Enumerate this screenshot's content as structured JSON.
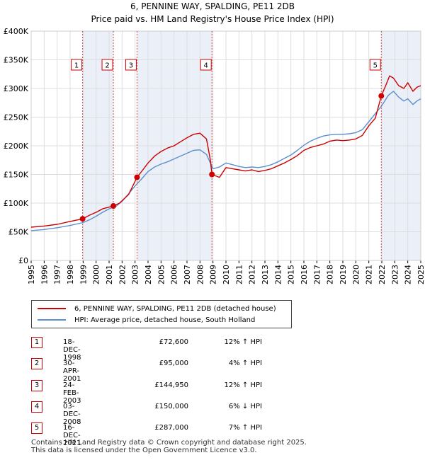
{
  "chart_data": {
    "type": "line",
    "title": "6, PENNINE WAY, SPALDING, PE11 2DB",
    "subtitle": "Price paid vs. HM Land Registry's House Price Index (HPI)",
    "x_ticks": [
      "1995",
      "1996",
      "1997",
      "1998",
      "1999",
      "2000",
      "2001",
      "2002",
      "2003",
      "2004",
      "2005",
      "2006",
      "2007",
      "2008",
      "2009",
      "2010",
      "2011",
      "2012",
      "2013",
      "2014",
      "2015",
      "2016",
      "2017",
      "2018",
      "2019",
      "2020",
      "2021",
      "2022",
      "2023",
      "2024",
      "2025"
    ],
    "y_ticks": [
      "£0",
      "£50K",
      "£100K",
      "£150K",
      "£200K",
      "£250K",
      "£300K",
      "£350K",
      "£400K"
    ],
    "xlim": [
      1995,
      2025
    ],
    "ylim": [
      0,
      400000
    ],
    "series": [
      {
        "name": "6, PENNINE WAY, SPALDING, PE11 2DB (detached house)",
        "color": "#cc0000",
        "points": [
          [
            1995,
            58000
          ],
          [
            1996,
            60000
          ],
          [
            1997,
            63000
          ],
          [
            1998,
            68000
          ],
          [
            1998.96,
            72600
          ],
          [
            1999.5,
            79000
          ],
          [
            2000,
            84000
          ],
          [
            2000.5,
            90000
          ],
          [
            2001.33,
            95000
          ],
          [
            2001.8,
            100000
          ],
          [
            2002.5,
            115000
          ],
          [
            2003.15,
            144950
          ],
          [
            2003.6,
            158000
          ],
          [
            2004,
            170000
          ],
          [
            2004.5,
            182000
          ],
          [
            2005,
            190000
          ],
          [
            2005.5,
            196000
          ],
          [
            2006,
            200000
          ],
          [
            2006.5,
            207000
          ],
          [
            2007,
            214000
          ],
          [
            2007.5,
            220000
          ],
          [
            2008,
            222000
          ],
          [
            2008.5,
            212000
          ],
          [
            2008.8,
            175000
          ],
          [
            2008.92,
            150000
          ],
          [
            2009.5,
            145000
          ],
          [
            2010,
            162000
          ],
          [
            2010.5,
            160000
          ],
          [
            2011,
            158000
          ],
          [
            2011.5,
            156000
          ],
          [
            2012,
            158000
          ],
          [
            2012.5,
            155000
          ],
          [
            2013,
            157000
          ],
          [
            2013.5,
            160000
          ],
          [
            2014,
            165000
          ],
          [
            2014.5,
            170000
          ],
          [
            2015,
            176000
          ],
          [
            2015.5,
            183000
          ],
          [
            2016,
            192000
          ],
          [
            2016.5,
            197000
          ],
          [
            2017,
            200000
          ],
          [
            2017.5,
            203000
          ],
          [
            2018,
            208000
          ],
          [
            2018.5,
            210000
          ],
          [
            2019,
            209000
          ],
          [
            2019.5,
            210000
          ],
          [
            2020,
            212000
          ],
          [
            2020.5,
            218000
          ],
          [
            2021,
            235000
          ],
          [
            2021.5,
            248000
          ],
          [
            2021.96,
            287000
          ],
          [
            2022.3,
            305000
          ],
          [
            2022.6,
            322000
          ],
          [
            2022.9,
            318000
          ],
          [
            2023.3,
            305000
          ],
          [
            2023.7,
            300000
          ],
          [
            2024,
            310000
          ],
          [
            2024.4,
            295000
          ],
          [
            2024.7,
            302000
          ],
          [
            2025,
            305000
          ]
        ]
      },
      {
        "name": "HPI: Average price, detached house, South Holland",
        "color": "#5b8fd0",
        "points": [
          [
            1995,
            52000
          ],
          [
            1996,
            54000
          ],
          [
            1997,
            57000
          ],
          [
            1998,
            61000
          ],
          [
            1999,
            66000
          ],
          [
            1999.5,
            71000
          ],
          [
            2000,
            77000
          ],
          [
            2000.5,
            84000
          ],
          [
            2001,
            90000
          ],
          [
            2001.5,
            94000
          ],
          [
            2002,
            103000
          ],
          [
            2002.5,
            116000
          ],
          [
            2003,
            130000
          ],
          [
            2003.5,
            142000
          ],
          [
            2004,
            155000
          ],
          [
            2004.5,
            163000
          ],
          [
            2005,
            168000
          ],
          [
            2005.5,
            172000
          ],
          [
            2006,
            177000
          ],
          [
            2006.5,
            182000
          ],
          [
            2007,
            187000
          ],
          [
            2007.5,
            192000
          ],
          [
            2008,
            193000
          ],
          [
            2008.5,
            185000
          ],
          [
            2009,
            160000
          ],
          [
            2009.5,
            163000
          ],
          [
            2010,
            170000
          ],
          [
            2010.5,
            167000
          ],
          [
            2011,
            164000
          ],
          [
            2011.5,
            162000
          ],
          [
            2012,
            163000
          ],
          [
            2012.5,
            162000
          ],
          [
            2013,
            164000
          ],
          [
            2013.5,
            167000
          ],
          [
            2014,
            172000
          ],
          [
            2014.5,
            178000
          ],
          [
            2015,
            184000
          ],
          [
            2015.5,
            192000
          ],
          [
            2016,
            201000
          ],
          [
            2016.5,
            208000
          ],
          [
            2017,
            213000
          ],
          [
            2017.5,
            217000
          ],
          [
            2018,
            219000
          ],
          [
            2018.5,
            220000
          ],
          [
            2019,
            220000
          ],
          [
            2019.5,
            221000
          ],
          [
            2020,
            223000
          ],
          [
            2020.5,
            228000
          ],
          [
            2021,
            242000
          ],
          [
            2021.5,
            256000
          ],
          [
            2022,
            270000
          ],
          [
            2022.5,
            288000
          ],
          [
            2022.9,
            295000
          ],
          [
            2023.3,
            285000
          ],
          [
            2023.7,
            278000
          ],
          [
            2024,
            282000
          ],
          [
            2024.4,
            272000
          ],
          [
            2024.7,
            278000
          ],
          [
            2025,
            282000
          ]
        ]
      }
    ],
    "sales": [
      {
        "label": "1",
        "date": "18-DEC-1998",
        "price": "£72,600",
        "hpi": "12% ↑ HPI",
        "x": 1998.96,
        "value": 72600
      },
      {
        "label": "2",
        "date": "30-APR-2001",
        "price": "£95,000",
        "hpi": "4% ↑ HPI",
        "x": 2001.33,
        "value": 95000
      },
      {
        "label": "3",
        "date": "24-FEB-2003",
        "price": "£144,950",
        "hpi": "12% ↑ HPI",
        "x": 2003.15,
        "value": 144950
      },
      {
        "label": "4",
        "date": "03-DEC-2008",
        "price": "£150,000",
        "hpi": "6% ↓ HPI",
        "x": 2008.92,
        "value": 150000
      },
      {
        "label": "5",
        "date": "16-DEC-2021",
        "price": "£287,000",
        "hpi": "7% ↑ HPI",
        "x": 2021.96,
        "value": 287000
      }
    ],
    "shaded_ranges": [
      [
        1998.96,
        2001.33
      ],
      [
        2003.15,
        2008.92
      ],
      [
        2021.96,
        2025
      ]
    ],
    "grid": true,
    "legend_position": "below"
  },
  "footer": {
    "line1": "Contains HM Land Registry data © Crown copyright and database right 2025.",
    "line2": "This data is licensed under the Open Government Licence v3.0."
  }
}
